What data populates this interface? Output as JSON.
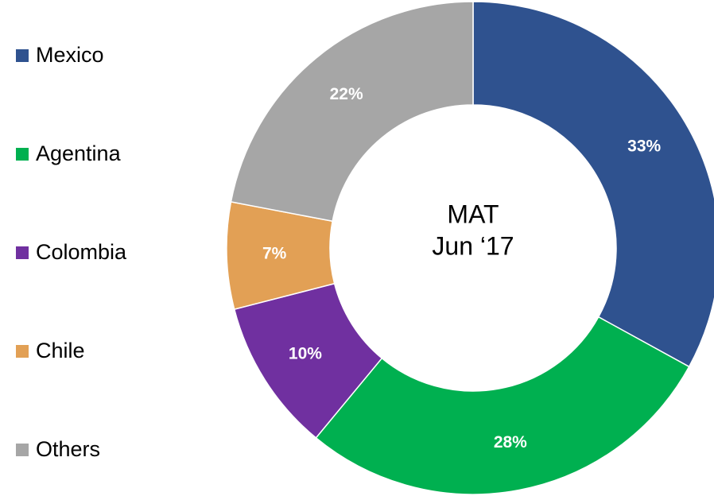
{
  "chart_data": {
    "type": "donut",
    "center_text": [
      "MAT",
      "Jun ‘17"
    ],
    "categories": [
      "Mexico",
      "Agentina",
      "Colombia",
      "Chile",
      "Others"
    ],
    "values": [
      33,
      28,
      10,
      7,
      22
    ],
    "value_labels": [
      "33%",
      "28%",
      "10%",
      "7%",
      "22%"
    ],
    "colors": [
      "#2f528f",
      "#00b050",
      "#7030a0",
      "#e2a055",
      "#a6a6a6"
    ],
    "legend": "left"
  }
}
